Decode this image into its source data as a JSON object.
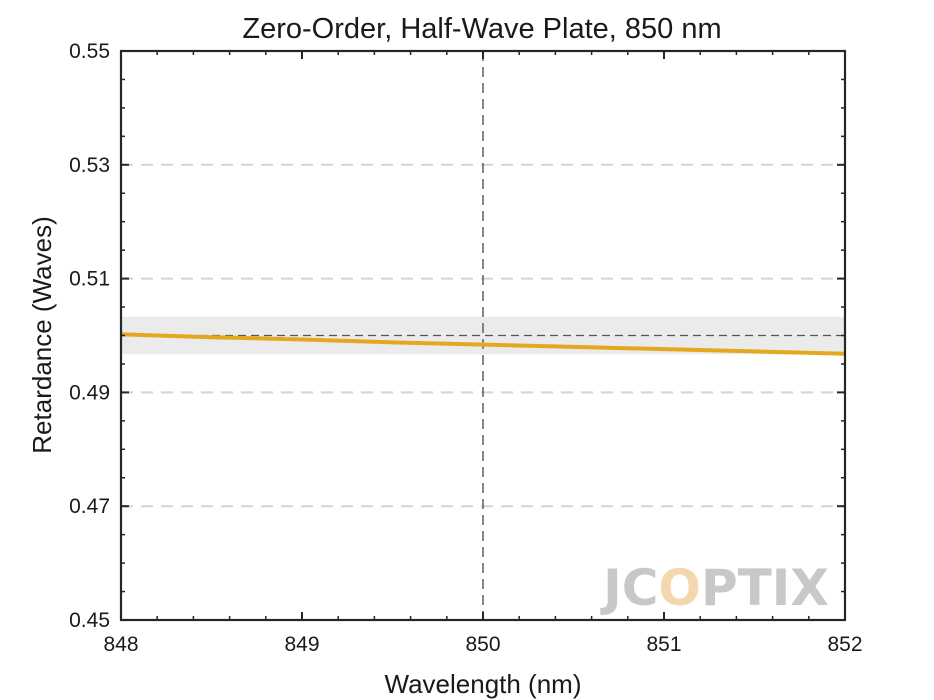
{
  "chart_data": {
    "type": "line",
    "title": "Zero-Order, Half-Wave Plate, 850 nm",
    "xlabel": "Wavelength (nm)",
    "ylabel": "Retardance (Waves)",
    "xlim": [
      848,
      852
    ],
    "ylim": [
      0.45,
      0.55
    ],
    "xticks": [
      "848",
      "849",
      "850",
      "851",
      "852"
    ],
    "yticks": [
      "0.45",
      "0.47",
      "0.49",
      "0.51",
      "0.53",
      "0.55"
    ],
    "grid": "horizontal dashed",
    "series": [
      {
        "color": "#e3a81e",
        "x": [
          848,
          848.5,
          849,
          849.5,
          850,
          850.5,
          851,
          851.5,
          852
        ],
        "y": [
          0.5002,
          0.4997,
          0.4993,
          0.4988,
          0.4984,
          0.498,
          0.4976,
          0.4972,
          0.4968
        ]
      }
    ],
    "target_line": {
      "y": 0.5,
      "color": "#555555"
    },
    "tolerance_band": {
      "y_min": 0.4967,
      "y_max": 0.5033,
      "color": "#ebebeb"
    },
    "center_wavelength_line": {
      "x": 850,
      "color": "#555555"
    }
  },
  "logo": {
    "text": "JCOPTIX"
  }
}
